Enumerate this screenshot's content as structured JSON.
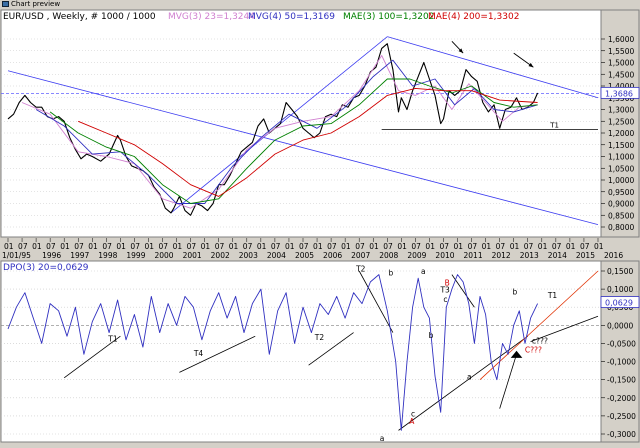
{
  "window": {
    "title": "Chart preview"
  },
  "top_panel": {
    "header_prefix": "EUR/USD , Weekly, # 1000 / 1000",
    "header_items": [
      {
        "text": "MVG(3) 23=1,3244",
        "color": "#d080d0"
      },
      {
        "text": "MVG(4) 50=1,3169",
        "color": "#3030c0"
      },
      {
        "text": "MAE(3) 100=1,3202",
        "color": "#008000"
      },
      {
        "text": "MAE(4) 200=1,3302",
        "color": "#d00000"
      }
    ],
    "last_price_label": "1,3686",
    "trendline_label": "T1"
  },
  "bottom_panel": {
    "header": "DPO(3) 20=0,0629",
    "last_value_label": "0,0629",
    "annotations": [
      {
        "text": "T2",
        "color": "#000000",
        "t": 0.59,
        "v": 0.148
      },
      {
        "text": "b",
        "color": "#000000",
        "t": 0.645,
        "v": 0.138
      },
      {
        "text": "a",
        "color": "#000000",
        "t": 0.7,
        "v": 0.142
      },
      {
        "text": "B",
        "color": "#d00000",
        "t": 0.74,
        "v": 0.11
      },
      {
        "text": "T3",
        "color": "#000000",
        "t": 0.733,
        "v": 0.09
      },
      {
        "text": "c",
        "color": "#000000",
        "t": 0.738,
        "v": 0.065
      },
      {
        "text": "b",
        "color": "#000000",
        "t": 0.713,
        "v": -0.035
      },
      {
        "text": "a",
        "color": "#000000",
        "t": 0.778,
        "v": -0.15
      },
      {
        "text": "b",
        "color": "#000000",
        "t": 0.855,
        "v": 0.085
      },
      {
        "text": "T1",
        "color": "#000000",
        "t": 0.915,
        "v": 0.075
      },
      {
        "text": "c",
        "color": "#000000",
        "t": 0.683,
        "v": -0.252
      },
      {
        "text": "A",
        "color": "#d00000",
        "t": 0.68,
        "v": -0.272
      },
      {
        "text": "a",
        "color": "#000000",
        "t": 0.63,
        "v": -0.32
      },
      {
        "text": "T1",
        "color": "#000000",
        "t": 0.17,
        "v": -0.045
      },
      {
        "text": "T4",
        "color": "#000000",
        "t": 0.315,
        "v": -0.085
      },
      {
        "text": "T2",
        "color": "#000000",
        "t": 0.52,
        "v": -0.04
      },
      {
        "text": "c???",
        "color": "#000000",
        "t": 0.888,
        "v": -0.05
      },
      {
        "text": "C???",
        "color": "#d00000",
        "t": 0.876,
        "v": -0.075
      }
    ]
  },
  "chart_data": {
    "type": "line",
    "x_axis": {
      "month_labels": [
        "01",
        "07",
        "01",
        "07",
        "01",
        "07",
        "01",
        "07",
        "01",
        "07",
        "01",
        "07",
        "01",
        "07",
        "01",
        "07",
        "01",
        "07",
        "01",
        "07",
        "01",
        "07",
        "01",
        "07",
        "01",
        "07",
        "01",
        "07",
        "01",
        "07",
        "01",
        "07",
        "01",
        "07",
        "01",
        "07",
        "01",
        "07",
        "01",
        "07",
        "01",
        "07",
        "01"
      ],
      "year_labels": [
        "1/01/95",
        "1996",
        "1997",
        "1998",
        "1999",
        "2000",
        "2001",
        "2002",
        "2003",
        "2004",
        "2005",
        "2006",
        "2007",
        "2008",
        "2009",
        "2010",
        "2011",
        "2012",
        "2013",
        "2014",
        "2015",
        "2016"
      ],
      "range": [
        1995.0,
        2016.0
      ]
    },
    "top": {
      "y_range": [
        0.8,
        1.6
      ],
      "y_ticks": [
        "1,6000",
        "1,5500",
        "1,5000",
        "1,4500",
        "1,4000",
        "1,3500",
        "1,3000",
        "1,2500",
        "1,2000",
        "1,1500",
        "1,1000",
        "1,0500",
        "1,0000",
        "0,9500",
        "0,9000",
        "0,8500",
        "0,8000"
      ],
      "last_price": 1.3686,
      "support_T1": 1.215,
      "series": [
        {
          "name": "EUR/USD",
          "color": "#000000",
          "x": [
            1995.0,
            1995.2,
            1995.4,
            1995.6,
            1995.8,
            1996.0,
            1996.2,
            1996.4,
            1996.6,
            1996.8,
            1997.0,
            1997.2,
            1997.4,
            1997.6,
            1997.8,
            1998.0,
            1998.3,
            1998.6,
            1998.9,
            1999.0,
            1999.2,
            1999.4,
            1999.6,
            1999.8,
            2000.0,
            2000.2,
            2000.4,
            2000.6,
            2000.8,
            2000.9,
            2001.1,
            2001.3,
            2001.5,
            2001.7,
            2001.9,
            2002.1,
            2002.3,
            2002.5,
            2002.7,
            2002.9,
            2003.1,
            2003.3,
            2003.5,
            2003.7,
            2003.9,
            2004.1,
            2004.3,
            2004.5,
            2004.7,
            2004.9,
            2005.1,
            2005.3,
            2005.5,
            2005.7,
            2005.9,
            2006.1,
            2006.3,
            2006.5,
            2006.7,
            2006.9,
            2007.1,
            2007.3,
            2007.5,
            2007.7,
            2007.9,
            2008.1,
            2008.3,
            2008.5,
            2008.7,
            2008.9,
            2009.0,
            2009.2,
            2009.4,
            2009.6,
            2009.8,
            2010.0,
            2010.2,
            2010.4,
            2010.5,
            2010.7,
            2010.9,
            2011.1,
            2011.3,
            2011.5,
            2011.7,
            2011.9,
            2012.1,
            2012.3,
            2012.5,
            2012.7,
            2012.9,
            2013.1,
            2013.3,
            2013.5,
            2013.7,
            2013.85
          ],
          "y": [
            1.26,
            1.28,
            1.33,
            1.36,
            1.33,
            1.31,
            1.31,
            1.27,
            1.26,
            1.27,
            1.25,
            1.18,
            1.13,
            1.09,
            1.11,
            1.1,
            1.08,
            1.11,
            1.19,
            1.17,
            1.1,
            1.06,
            1.05,
            1.04,
            1.02,
            0.97,
            0.94,
            0.88,
            0.86,
            0.88,
            0.93,
            0.87,
            0.85,
            0.9,
            0.89,
            0.87,
            0.9,
            0.98,
            0.98,
            1.02,
            1.07,
            1.12,
            1.14,
            1.16,
            1.23,
            1.26,
            1.2,
            1.22,
            1.24,
            1.33,
            1.3,
            1.27,
            1.22,
            1.2,
            1.18,
            1.2,
            1.27,
            1.28,
            1.27,
            1.32,
            1.31,
            1.35,
            1.36,
            1.4,
            1.46,
            1.48,
            1.56,
            1.58,
            1.47,
            1.29,
            1.35,
            1.3,
            1.38,
            1.44,
            1.5,
            1.43,
            1.36,
            1.24,
            1.26,
            1.38,
            1.36,
            1.38,
            1.47,
            1.44,
            1.42,
            1.33,
            1.29,
            1.32,
            1.22,
            1.3,
            1.31,
            1.35,
            1.3,
            1.31,
            1.33,
            1.37
          ]
        },
        {
          "name": "MVG(3) 23",
          "color": "#d080d0",
          "x": [
            1995.5,
            1996.5,
            1997.5,
            1998.5,
            1999.5,
            2000.5,
            2001.5,
            2002.5,
            2003.5,
            2004.5,
            2005.5,
            2006.5,
            2007.5,
            2008.3,
            2008.9,
            2009.5,
            2010.2,
            2010.8,
            2011.4,
            2012.0,
            2012.6,
            2013.2,
            2013.85
          ],
          "y": [
            1.33,
            1.28,
            1.12,
            1.1,
            1.07,
            0.92,
            0.88,
            0.96,
            1.13,
            1.22,
            1.25,
            1.27,
            1.38,
            1.53,
            1.38,
            1.36,
            1.4,
            1.3,
            1.41,
            1.33,
            1.25,
            1.31,
            1.32
          ]
        },
        {
          "name": "MVG(4) 50",
          "color": "#3030c0",
          "x": [
            1996.0,
            1997.0,
            1998.0,
            1999.0,
            2000.0,
            2001.0,
            2002.0,
            2003.0,
            2004.0,
            2005.0,
            2006.0,
            2007.0,
            2008.0,
            2008.7,
            2009.4,
            2010.2,
            2010.9,
            2011.6,
            2012.3,
            2013.0,
            2013.85
          ],
          "y": [
            1.3,
            1.23,
            1.11,
            1.12,
            1.02,
            0.9,
            0.9,
            1.06,
            1.18,
            1.28,
            1.22,
            1.31,
            1.44,
            1.51,
            1.4,
            1.43,
            1.32,
            1.39,
            1.3,
            1.29,
            1.32
          ]
        },
        {
          "name": "MAE(3) 100",
          "color": "#008000",
          "x": [
            1996.5,
            1997.5,
            1998.5,
            1999.5,
            2000.5,
            2001.5,
            2002.5,
            2003.5,
            2004.5,
            2005.5,
            2006.5,
            2007.5,
            2008.5,
            2009.3,
            2010.0,
            2010.8,
            2011.5,
            2012.3,
            2013.0,
            2013.85
          ],
          "y": [
            1.29,
            1.2,
            1.14,
            1.1,
            0.98,
            0.9,
            0.92,
            1.05,
            1.17,
            1.23,
            1.24,
            1.32,
            1.43,
            1.43,
            1.4,
            1.37,
            1.4,
            1.33,
            1.31,
            1.32
          ]
        },
        {
          "name": "MAE(4) 200",
          "color": "#d00000",
          "x": [
            1997.5,
            1998.5,
            1999.5,
            2000.5,
            2001.5,
            2002.5,
            2003.5,
            2004.5,
            2005.5,
            2006.5,
            2007.5,
            2008.5,
            2009.5,
            2010.5,
            2011.5,
            2012.5,
            2013.85
          ],
          "y": [
            1.25,
            1.2,
            1.15,
            1.07,
            0.98,
            0.93,
            1.01,
            1.11,
            1.17,
            1.2,
            1.27,
            1.36,
            1.39,
            1.38,
            1.38,
            1.34,
            1.33
          ]
        }
      ]
    },
    "bottom": {
      "y_range": [
        -0.3,
        0.15
      ],
      "y_ticks": [
        "0,1500",
        "0,1000",
        "0,0500",
        "0,0000",
        "-0,0500",
        "-0,1000",
        "-0,1500",
        "-0,2000",
        "-0,2500",
        "-0,3000"
      ],
      "last_value": 0.0629,
      "series": [
        {
          "name": "DPO(3) 20",
          "color": "#3030c0",
          "x": [
            1995.0,
            1995.3,
            1995.6,
            1995.9,
            1996.2,
            1996.5,
            1996.8,
            1997.1,
            1997.4,
            1997.7,
            1998.0,
            1998.3,
            1998.6,
            1998.9,
            1999.2,
            1999.5,
            1999.8,
            2000.1,
            2000.4,
            2000.7,
            2001.0,
            2001.3,
            2001.6,
            2001.9,
            2002.2,
            2002.5,
            2002.8,
            2003.1,
            2003.4,
            2003.7,
            2004.0,
            2004.3,
            2004.6,
            2004.9,
            2005.2,
            2005.5,
            2005.8,
            2006.1,
            2006.4,
            2006.7,
            2007.0,
            2007.3,
            2007.6,
            2007.9,
            2008.2,
            2008.5,
            2008.8,
            2009.0,
            2009.2,
            2009.4,
            2009.6,
            2009.8,
            2010.0,
            2010.2,
            2010.4,
            2010.6,
            2010.8,
            2011.0,
            2011.2,
            2011.4,
            2011.6,
            2011.8,
            2012.0,
            2012.2,
            2012.4,
            2012.6,
            2012.8,
            2013.0,
            2013.2,
            2013.4,
            2013.6,
            2013.85
          ],
          "y": [
            -0.01,
            0.05,
            0.09,
            0.02,
            -0.05,
            0.06,
            0.04,
            -0.03,
            0.05,
            -0.08,
            0.01,
            0.06,
            -0.02,
            0.07,
            -0.04,
            0.03,
            -0.06,
            0.08,
            -0.02,
            0.06,
            0.0,
            0.08,
            0.05,
            -0.04,
            0.04,
            0.09,
            0.02,
            0.08,
            -0.02,
            0.06,
            0.1,
            -0.08,
            0.04,
            0.09,
            -0.05,
            0.05,
            -0.02,
            0.06,
            0.03,
            0.08,
            0.02,
            0.09,
            0.06,
            0.12,
            0.14,
            0.04,
            -0.1,
            -0.29,
            -0.1,
            0.05,
            0.13,
            0.05,
            0.02,
            -0.14,
            -0.24,
            0.05,
            0.1,
            0.14,
            0.12,
            0.06,
            -0.05,
            0.08,
            0.03,
            -0.1,
            -0.15,
            -0.05,
            -0.08,
            0.0,
            0.04,
            -0.05,
            0.02,
            0.06
          ]
        }
      ]
    }
  }
}
